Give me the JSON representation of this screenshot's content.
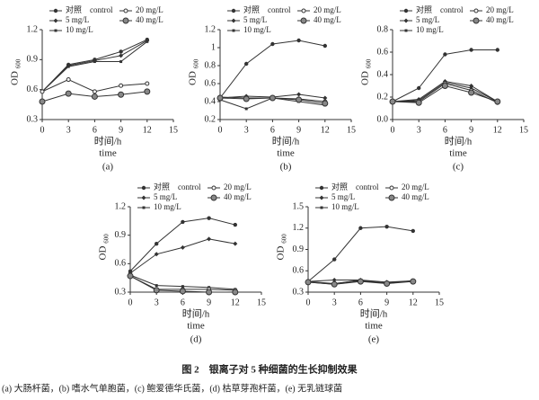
{
  "chart_data": [
    {
      "type": "line",
      "panel_label": "(a)",
      "ylabel": "OD",
      "ylabel_sub": "600",
      "xlabel": "时间/h",
      "xlabel_en": "time",
      "x": [
        0,
        3,
        6,
        9,
        12
      ],
      "xlim": [
        0,
        15
      ],
      "xticks": [
        0,
        3,
        6,
        9,
        12,
        15
      ],
      "ylim": [
        0.3,
        1.2
      ],
      "yticks": [
        0.3,
        0.6,
        0.9,
        1.2
      ],
      "series": [
        {
          "name": "对照    control",
          "color": "#333",
          "marker": "dot",
          "values": [
            0.58,
            0.85,
            0.9,
            0.98,
            1.1
          ]
        },
        {
          "name": "5 mg/L",
          "color": "#333",
          "marker": "diamond",
          "values": [
            0.58,
            0.84,
            0.89,
            0.94,
            1.09
          ]
        },
        {
          "name": "10 mg/L",
          "color": "#333",
          "marker": "dash",
          "values": [
            0.58,
            0.83,
            0.88,
            0.88,
            1.08
          ]
        },
        {
          "name": "20 mg/L",
          "color": "#333",
          "marker": "small",
          "values": [
            0.58,
            0.7,
            0.58,
            0.64,
            0.66
          ]
        },
        {
          "name": "40 mg/L",
          "color": "#333",
          "marker": "ring",
          "values": [
            0.48,
            0.56,
            0.53,
            0.55,
            0.58
          ]
        }
      ]
    },
    {
      "type": "line",
      "panel_label": "(b)",
      "ylabel": "OD",
      "ylabel_sub": "600",
      "xlabel": "时间/h",
      "xlabel_en": "time",
      "x": [
        0,
        3,
        6,
        9,
        12
      ],
      "xlim": [
        0,
        15
      ],
      "xticks": [
        0,
        3,
        6,
        9,
        12,
        15
      ],
      "ylim": [
        0.2,
        1.2
      ],
      "yticks": [
        0.2,
        0.4,
        0.6,
        0.8,
        1.0,
        1.2
      ],
      "series": [
        {
          "name": "对照    control",
          "color": "#333",
          "marker": "dot",
          "values": [
            0.44,
            0.82,
            1.04,
            1.08,
            1.02
          ]
        },
        {
          "name": "5 mg/L",
          "color": "#333",
          "marker": "diamond",
          "values": [
            0.44,
            0.46,
            0.45,
            0.48,
            0.44
          ]
        },
        {
          "name": "10 mg/L",
          "color": "#333",
          "marker": "dash",
          "values": [
            0.42,
            0.32,
            0.44,
            0.4,
            0.36
          ]
        },
        {
          "name": "20 mg/L",
          "color": "#333",
          "marker": "small",
          "values": [
            0.45,
            0.44,
            0.44,
            0.43,
            0.4
          ]
        },
        {
          "name": "40 mg/L",
          "color": "#333",
          "marker": "ring",
          "values": [
            0.44,
            0.43,
            0.44,
            0.42,
            0.38
          ]
        }
      ]
    },
    {
      "type": "line",
      "panel_label": "(c)",
      "ylabel": "OD",
      "ylabel_sub": "600",
      "xlabel": "时间/h",
      "xlabel_en": "time",
      "x": [
        0,
        3,
        6,
        9,
        12
      ],
      "xlim": [
        0,
        15
      ],
      "xticks": [
        0,
        3,
        6,
        9,
        12,
        15
      ],
      "ylim": [
        0,
        0.8
      ],
      "yticks": [
        {
          "value": 0,
          "label": "0.0"
        },
        0.2,
        0.4,
        0.6,
        0.8
      ],
      "series": [
        {
          "name": "对照    control",
          "color": "#333",
          "marker": "dot",
          "values": [
            0.16,
            0.28,
            0.58,
            0.62,
            0.62
          ]
        },
        {
          "name": "5 mg/L",
          "color": "#333",
          "marker": "diamond",
          "values": [
            0.16,
            0.18,
            0.34,
            0.3,
            0.16
          ]
        },
        {
          "name": "10 mg/L",
          "color": "#333",
          "marker": "dash",
          "values": [
            0.16,
            0.17,
            0.33,
            0.28,
            0.16
          ]
        },
        {
          "name": "20 mg/L",
          "color": "#333",
          "marker": "small",
          "values": [
            0.16,
            0.16,
            0.32,
            0.26,
            0.15
          ]
        },
        {
          "name": "40 mg/L",
          "color": "#333",
          "marker": "ring",
          "values": [
            0.16,
            0.15,
            0.3,
            0.24,
            0.16
          ]
        }
      ]
    },
    {
      "type": "line",
      "panel_label": "(d)",
      "ylabel": "OD",
      "ylabel_sub": "600",
      "xlabel": "时间/h",
      "xlabel_en": "time",
      "x": [
        0,
        3,
        6,
        9,
        12
      ],
      "xlim": [
        0,
        15
      ],
      "xticks": [
        0,
        3,
        6,
        9,
        12,
        15
      ],
      "ylim": [
        0.3,
        1.2
      ],
      "yticks": [
        0.3,
        0.6,
        0.9,
        1.2
      ],
      "series": [
        {
          "name": "对照    control",
          "color": "#333",
          "marker": "dot",
          "values": [
            0.52,
            0.81,
            1.04,
            1.08,
            1.01
          ]
        },
        {
          "name": "5 mg/L",
          "color": "#333",
          "marker": "diamond",
          "values": [
            0.5,
            0.7,
            0.77,
            0.86,
            0.81
          ]
        },
        {
          "name": "10 mg/L",
          "color": "#333",
          "marker": "dash",
          "values": [
            0.48,
            0.37,
            0.36,
            0.35,
            0.33
          ]
        },
        {
          "name": "20 mg/L",
          "color": "#333",
          "marker": "small",
          "values": [
            0.47,
            0.33,
            0.33,
            0.33,
            0.32
          ]
        },
        {
          "name": "40 mg/L",
          "color": "#333",
          "marker": "ring",
          "values": [
            0.47,
            0.32,
            0.31,
            0.3,
            0.3
          ]
        }
      ]
    },
    {
      "type": "line",
      "panel_label": "(e)",
      "ylabel": "OD",
      "ylabel_sub": "600",
      "xlabel": "时间/h",
      "xlabel_en": "time",
      "x": [
        0,
        3,
        6,
        9,
        12
      ],
      "xlim": [
        0,
        15
      ],
      "xticks": [
        0,
        3,
        6,
        9,
        12,
        15
      ],
      "ylim": [
        0.3,
        1.5
      ],
      "yticks": [
        0.3,
        0.6,
        0.9,
        1.2,
        1.5
      ],
      "series": [
        {
          "name": "对照    control",
          "color": "#333",
          "marker": "dot",
          "values": [
            0.45,
            0.76,
            1.2,
            1.22,
            1.16
          ]
        },
        {
          "name": "5 mg/L",
          "color": "#333",
          "marker": "diamond",
          "values": [
            0.45,
            0.47,
            0.47,
            0.44,
            0.46
          ]
        },
        {
          "name": "10 mg/L",
          "color": "#333",
          "marker": "dash",
          "values": [
            0.45,
            0.42,
            0.47,
            0.42,
            0.46
          ]
        },
        {
          "name": "20 mg/L",
          "color": "#333",
          "marker": "small",
          "values": [
            0.44,
            0.41,
            0.46,
            0.43,
            0.46
          ]
        },
        {
          "name": "40 mg/L",
          "color": "#333",
          "marker": "ring",
          "values": [
            0.44,
            0.41,
            0.45,
            0.42,
            0.45
          ]
        }
      ]
    }
  ],
  "figure": {
    "caption": "图 2　银离子对 5 种细菌的生长抑制效果",
    "note": "(a) 大肠杆菌，(b) 嗜水气单胞菌，(c) 鲍爱德华氏菌，(d) 枯草芽孢杆菌，(e) 无乳链球菌"
  }
}
